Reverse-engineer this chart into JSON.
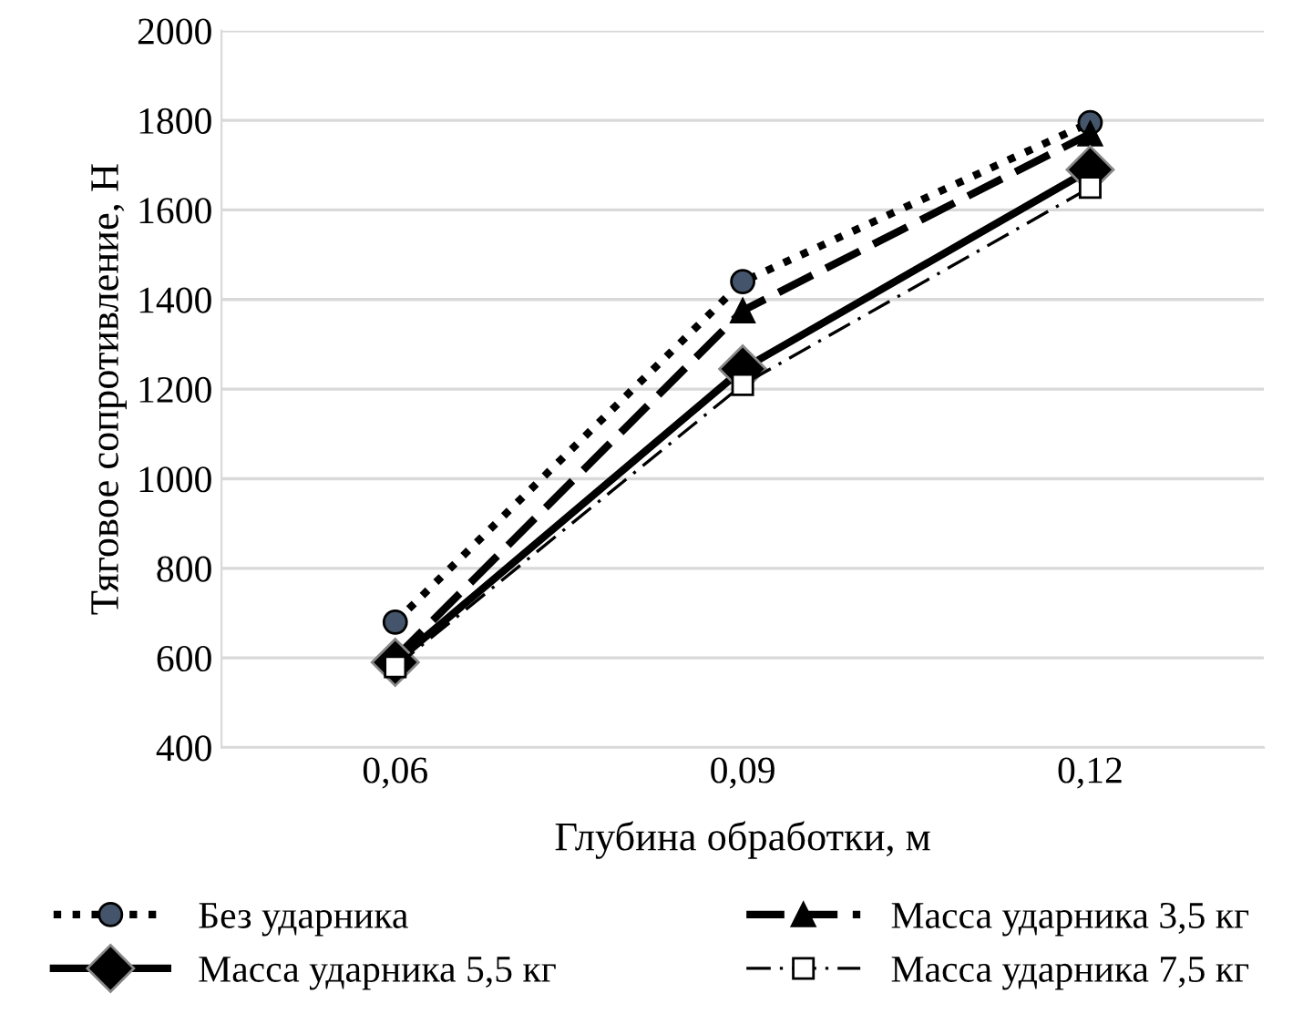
{
  "chart_data": {
    "type": "line",
    "xlabel": "Глубина обработки, м",
    "ylabel": "Тяговое сопротивление, Н",
    "categories": [
      "0,06",
      "0,09",
      "0,12"
    ],
    "series": [
      {
        "name": "Без ударника",
        "color": "#000000",
        "marker": "circle",
        "line_style": "dotted",
        "values": [
          680,
          1440,
          1795
        ]
      },
      {
        "name": "Масса ударника 3,5 кг",
        "color": "#000000",
        "marker": "triangle",
        "line_style": "dashed",
        "values": [
          600,
          1375,
          1770
        ]
      },
      {
        "name": "Масса ударника 5,5 кг",
        "color": "#000000",
        "marker": "diamond",
        "line_style": "solid",
        "values": [
          590,
          1245,
          1690
        ]
      },
      {
        "name": "Масса ударника 7,5 кг",
        "color": "#000000",
        "marker": "square",
        "line_style": "dashed",
        "values": [
          580,
          1210,
          1650
        ]
      }
    ],
    "ylim": [
      400,
      2000
    ],
    "yticks": [
      400,
      600,
      800,
      1000,
      1200,
      1400,
      1600,
      1800,
      2000
    ],
    "grid": "y",
    "legend": "bottom"
  }
}
